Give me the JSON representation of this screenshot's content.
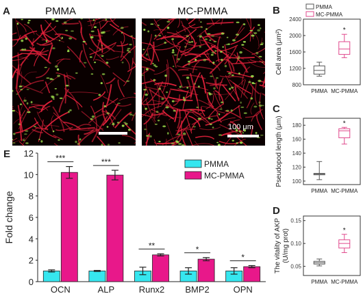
{
  "panels": {
    "a_letter": "A",
    "b_letter": "B",
    "c_letter": "C",
    "d_letter": "D",
    "e_letter": "E"
  },
  "micrographs": {
    "left_title": "PMMA",
    "right_title": "MC-PMMA",
    "scale_label": "100 μm",
    "colors": {
      "background": "#0a0000",
      "actin": "#e0203a",
      "nuclei": "#9ad84a"
    }
  },
  "colors": {
    "pmma_box": "#555555",
    "mcpmma_box": "#e0488c",
    "pmma_bar": "#36e6ef",
    "mcpmma_bar": "#e8188a"
  },
  "chart_data": [
    {
      "id": "B",
      "type": "box",
      "ylabel": "Cell area (μm²)",
      "ylim": [
        800,
        2400
      ],
      "yticks": [
        800,
        1200,
        1600,
        2000,
        2400
      ],
      "categories": [
        "PMMA",
        "MC-PMMA"
      ],
      "legend": [
        "PMMA",
        "MC-PMMA"
      ],
      "boxes": [
        {
          "min": 1010,
          "q1": 1060,
          "median": 1150,
          "q3": 1260,
          "max": 1350
        },
        {
          "min": 1460,
          "q1": 1540,
          "median": 1670,
          "q3": 1850,
          "max": 2030,
          "sig": "*"
        }
      ]
    },
    {
      "id": "C",
      "type": "box",
      "ylabel": "Pseudopod length (μm)",
      "ylim": [
        95,
        190
      ],
      "yticks": [
        100,
        120,
        140,
        160,
        180
      ],
      "categories": [
        "PMMA",
        "MC-PMMA"
      ],
      "boxes": [
        {
          "min": 102,
          "q1": 109,
          "median": 110,
          "q3": 111,
          "max": 128
        },
        {
          "min": 153,
          "q1": 162,
          "median": 172,
          "q3": 175,
          "max": 177,
          "sig": "*"
        }
      ]
    },
    {
      "id": "D",
      "type": "box",
      "ylabel": "The vitality of AKP",
      "ylabel2": "(U/mg prot)",
      "ylim": [
        0.03,
        0.16
      ],
      "yticks": [
        0.05,
        0.1,
        0.15
      ],
      "ytick_labels": [
        "0.05",
        "0.10",
        "0.15"
      ],
      "categories": [
        "PMMA",
        "MC-PMMA"
      ],
      "boxes": [
        {
          "min": 0.051,
          "q1": 0.055,
          "median": 0.058,
          "q3": 0.061,
          "max": 0.066
        },
        {
          "min": 0.08,
          "q1": 0.09,
          "median": 0.1,
          "q3": 0.108,
          "max": 0.12,
          "sig": "*"
        }
      ]
    },
    {
      "id": "E",
      "type": "bar",
      "ylabel": "Fold change",
      "ylim": [
        0,
        12
      ],
      "yticks": [
        0,
        2,
        4,
        6,
        8,
        10,
        12
      ],
      "categories": [
        "OCN",
        "ALP",
        "Runx2",
        "BMP2",
        "OPN"
      ],
      "legend": [
        "PMMA",
        "MC-PMMA"
      ],
      "legend_position": "top-right",
      "series": [
        {
          "name": "PMMA",
          "values": [
            1.0,
            1.0,
            1.0,
            1.0,
            1.0
          ],
          "errors": [
            0.1,
            0.05,
            0.35,
            0.3,
            0.3
          ]
        },
        {
          "name": "MC-PMMA",
          "values": [
            10.2,
            9.95,
            2.5,
            2.1,
            1.4
          ],
          "errors": [
            0.55,
            0.45,
            0.1,
            0.15,
            0.1
          ]
        }
      ],
      "significance": [
        "***",
        "***",
        "**",
        "*",
        "*"
      ]
    }
  ]
}
